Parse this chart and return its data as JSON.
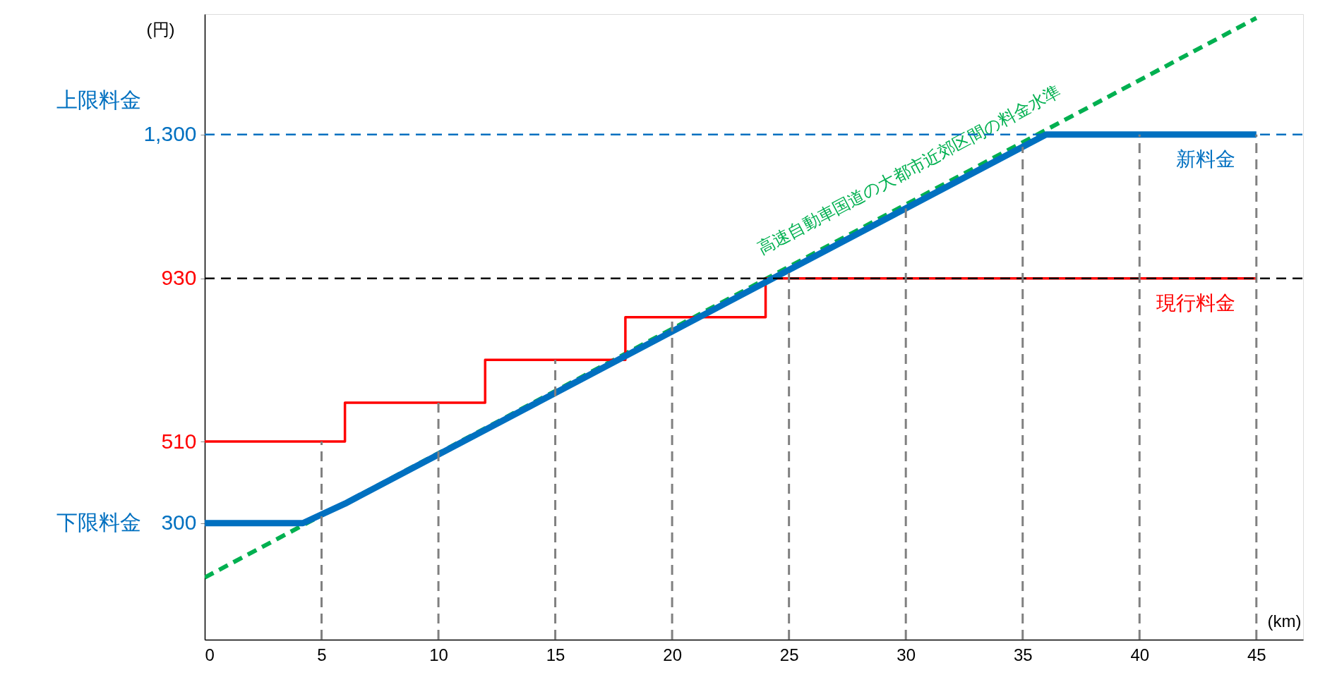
{
  "chart_data": {
    "type": "line",
    "xlabel": "(km)",
    "ylabel": "(円)",
    "xlim": [
      0,
      47
    ],
    "xticks": [
      0,
      5,
      10,
      15,
      20,
      25,
      30,
      35,
      40,
      45
    ],
    "ylim": [
      0,
      1610
    ],
    "yticks": [
      300,
      510,
      930,
      {
        "value": 1300,
        "label": "1,300"
      }
    ],
    "grid": false,
    "marker": "none",
    "series": [
      {
        "name": "高速自動車国道の大都市近郊区間の料金水準",
        "color": "#00b050",
        "line_style": "dashed",
        "x": [
          0,
          45
        ],
        "values": [
          160,
          1600
        ]
      },
      {
        "type": "step",
        "name": "現行料金",
        "color": "#ff0000",
        "line_style": "solid",
        "x": [
          0,
          6,
          12,
          18,
          24,
          45
        ],
        "values": [
          510,
          610,
          720,
          830,
          930,
          930
        ]
      },
      {
        "name": "新料金",
        "color": "#0070c0",
        "line_style": "solid",
        "x": [
          0,
          4.2,
          6,
          36,
          45
        ],
        "values": [
          300,
          300,
          350,
          1300,
          1300
        ]
      }
    ],
    "ref_lines": [
      {
        "axis": "y",
        "value": 1300,
        "color": "#0070c0",
        "line_style": "dashed"
      },
      {
        "axis": "y",
        "value": 930,
        "color": "#000000",
        "line_style": "dashed"
      },
      {
        "axis": "x",
        "value": 5,
        "color": "#808080",
        "line_style": "dashed"
      },
      {
        "axis": "x",
        "value": 10,
        "color": "#808080",
        "line_style": "dashed"
      },
      {
        "axis": "x",
        "value": 15,
        "color": "#808080",
        "line_style": "dashed"
      },
      {
        "axis": "x",
        "value": 20,
        "color": "#808080",
        "line_style": "dashed"
      },
      {
        "axis": "x",
        "value": 25,
        "color": "#808080",
        "line_style": "dashed"
      },
      {
        "axis": "x",
        "value": 30,
        "color": "#808080",
        "line_style": "dashed"
      },
      {
        "axis": "x",
        "value": 35,
        "color": "#808080",
        "line_style": "dashed"
      },
      {
        "axis": "x",
        "value": 40,
        "color": "#808080",
        "line_style": "dashed"
      },
      {
        "axis": "x",
        "value": 45,
        "color": "#808080",
        "line_style": "dashed"
      }
    ],
    "annotations": [
      "上限料金",
      "下限料金"
    ]
  }
}
